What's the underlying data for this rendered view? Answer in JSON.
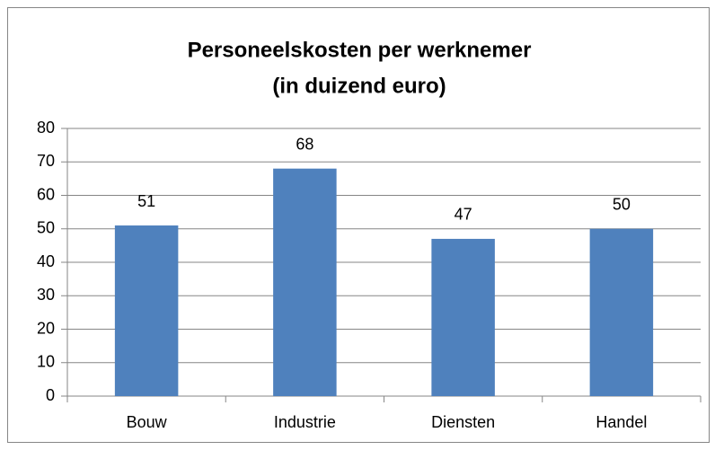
{
  "chart_data": {
    "type": "bar",
    "title": [
      "Personeelskosten per werknemer",
      "(in duizend euro)"
    ],
    "categories": [
      "Bouw",
      "Industrie",
      "Diensten",
      "Handel"
    ],
    "values": [
      51,
      68,
      47,
      50
    ],
    "color": "#4f81bd",
    "ylim": [
      0,
      80
    ],
    "yticks": [
      0,
      10,
      20,
      30,
      40,
      50,
      60,
      70,
      80
    ],
    "grid": true
  }
}
